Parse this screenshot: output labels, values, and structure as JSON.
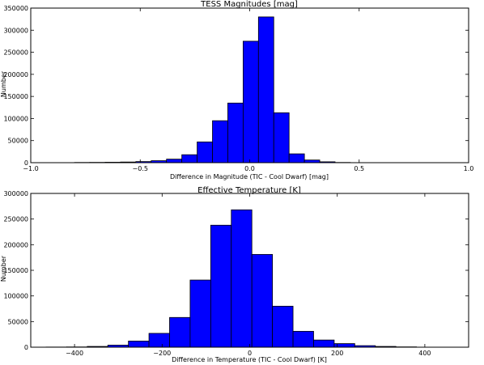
{
  "chart_data": [
    {
      "type": "bar",
      "title": "TESS Magnitudes [mag]",
      "xlabel": "Difference in Magnitude (TIC - Cool Dwarf) [mag]",
      "ylabel": "Number",
      "xlim": [
        -1.0,
        1.0
      ],
      "ylim": [
        0,
        350000
      ],
      "x_ticks": [
        "−1.0",
        "−0.5",
        "0.0",
        "0.5",
        "1.0"
      ],
      "y_ticks": [
        "0",
        "50000",
        "100000",
        "150000",
        "200000",
        "250000",
        "300000",
        "350000"
      ],
      "bar_color": "#0000ff",
      "grid": false,
      "bins": [
        {
          "x0": -0.8,
          "x1": -0.73,
          "value": 500
        },
        {
          "x0": -0.73,
          "x1": -0.66,
          "value": 700
        },
        {
          "x0": -0.66,
          "x1": -0.59,
          "value": 1000
        },
        {
          "x0": -0.59,
          "x1": -0.52,
          "value": 1500
        },
        {
          "x0": -0.52,
          "x1": -0.45,
          "value": 2500
        },
        {
          "x0": -0.45,
          "x1": -0.38,
          "value": 4500
        },
        {
          "x0": -0.38,
          "x1": -0.31,
          "value": 8000
        },
        {
          "x0": -0.31,
          "x1": -0.24,
          "value": 18000
        },
        {
          "x0": -0.24,
          "x1": -0.17,
          "value": 47000
        },
        {
          "x0": -0.17,
          "x1": -0.1,
          "value": 95000
        },
        {
          "x0": -0.1,
          "x1": -0.03,
          "value": 135000
        },
        {
          "x0": -0.03,
          "x1": 0.04,
          "value": 275000
        },
        {
          "x0": 0.04,
          "x1": 0.11,
          "value": 330000
        },
        {
          "x0": 0.11,
          "x1": 0.18,
          "value": 113000
        },
        {
          "x0": 0.18,
          "x1": 0.25,
          "value": 20000
        },
        {
          "x0": 0.25,
          "x1": 0.32,
          "value": 6000
        },
        {
          "x0": 0.32,
          "x1": 0.39,
          "value": 2000
        },
        {
          "x0": 0.39,
          "x1": 0.46,
          "value": 500
        }
      ]
    },
    {
      "type": "bar",
      "title": "Effective Temperature [K]",
      "xlabel": "Difference in Temperature (TIC -  Cool Dwarf) [K]",
      "ylabel": "Number",
      "xlim": [
        -500,
        500
      ],
      "ylim": [
        0,
        300000
      ],
      "x_ticks": [
        "−400",
        "−200",
        "0",
        "200",
        "400"
      ],
      "x_tick_values": [
        -400,
        -200,
        0,
        200,
        400
      ],
      "y_ticks": [
        "0",
        "50000",
        "100000",
        "150000",
        "200000",
        "250000",
        "300000"
      ],
      "bar_color": "#0000ff",
      "grid": false,
      "bins": [
        {
          "x0": -465,
          "x1": -418,
          "value": 300
        },
        {
          "x0": -418,
          "x1": -371,
          "value": 500
        },
        {
          "x0": -371,
          "x1": -324,
          "value": 1500
        },
        {
          "x0": -324,
          "x1": -277,
          "value": 4000
        },
        {
          "x0": -277,
          "x1": -230,
          "value": 12000
        },
        {
          "x0": -230,
          "x1": -183,
          "value": 27000
        },
        {
          "x0": -183,
          "x1": -136,
          "value": 58000
        },
        {
          "x0": -136,
          "x1": -89,
          "value": 131000
        },
        {
          "x0": -89,
          "x1": -42,
          "value": 238000
        },
        {
          "x0": -42,
          "x1": 5,
          "value": 268000
        },
        {
          "x0": 5,
          "x1": 52,
          "value": 181000
        },
        {
          "x0": 52,
          "x1": 99,
          "value": 80000
        },
        {
          "x0": 99,
          "x1": 146,
          "value": 31000
        },
        {
          "x0": 146,
          "x1": 193,
          "value": 14000
        },
        {
          "x0": 193,
          "x1": 240,
          "value": 7000
        },
        {
          "x0": 240,
          "x1": 287,
          "value": 3000
        },
        {
          "x0": 287,
          "x1": 334,
          "value": 1500
        },
        {
          "x0": 334,
          "x1": 381,
          "value": 600
        }
      ]
    }
  ]
}
